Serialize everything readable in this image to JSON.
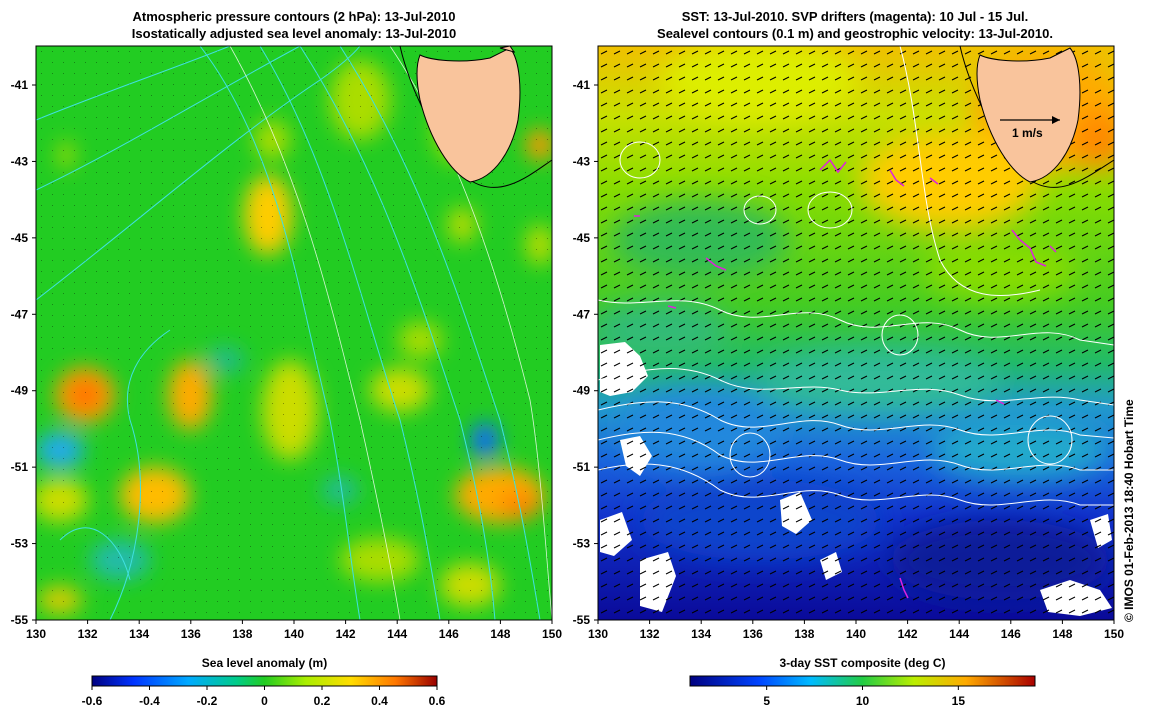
{
  "left_panel": {
    "title_line1": "Atmospheric pressure contours (2 hPa): 13-Jul-2010",
    "title_line2": "Isostatically adjusted sea level anomaly: 13-Jul-2010",
    "x_ticks": [
      "130",
      "132",
      "134",
      "136",
      "138",
      "140",
      "142",
      "144",
      "146",
      "148",
      "150"
    ],
    "y_ticks": [
      "-41",
      "-43",
      "-45",
      "-47",
      "-49",
      "-51",
      "-53",
      "-55"
    ],
    "colorbar_title": "Sea level anomaly (m)",
    "colorbar_ticks": [
      "-0.6",
      "-0.4",
      "-0.2",
      "0",
      "0.2",
      "0.4",
      "0.6"
    ]
  },
  "right_panel": {
    "title_line1": "SST: 13-Jul-2010. SVP drifters (magenta): 10 Jul - 15 Jul.",
    "title_line2": "Sealevel contours (0.1 m) and geostrophic velocity: 13-Jul-2010.",
    "x_ticks": [
      "130",
      "132",
      "134",
      "136",
      "138",
      "140",
      "142",
      "144",
      "146",
      "148",
      "150"
    ],
    "y_ticks": [
      "-41",
      "-43",
      "-45",
      "-47",
      "-49",
      "-51",
      "-53",
      "-55"
    ],
    "velocity_scale_label": "1 m/s",
    "colorbar_title": "3-day SST composite (deg C)",
    "colorbar_ticks": [
      "5",
      "10",
      "15"
    ]
  },
  "credit": "© IMOS 01-Feb-2013 18:40 Hobart Time",
  "colors": {
    "land": "#f9c49c",
    "sla_background": "#22cc22",
    "pressure_contour": "#40e0e0",
    "sea_level_contour": "#ffffff",
    "drifter": "#dd22dd"
  }
}
